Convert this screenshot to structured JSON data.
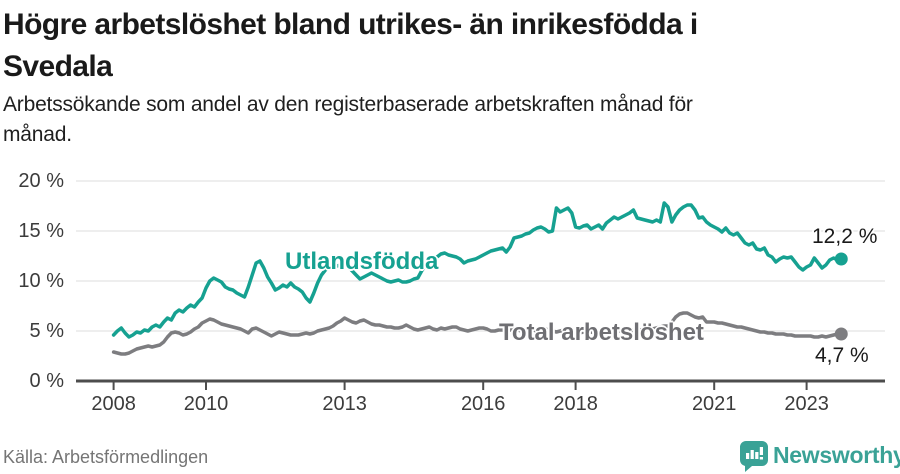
{
  "header": {
    "title_lines": [
      "Högre arbetslöshet bland utrikes- än inrikesfödda i",
      "Svedala"
    ],
    "subtitle_lines": [
      "Arbetssökande som andel av den registerbaserade arbetskraften månad för",
      "månad."
    ]
  },
  "chart_data": {
    "type": "line",
    "title": "Högre arbetslöshet bland utrikes- än inrikesfödda i Svedala",
    "subtitle": "Arbetssökande som andel av den registerbaserade arbetskraften månad för månad.",
    "frequency": "monthly",
    "x_start": "2008-01",
    "x_end": "2023-10",
    "ylim": [
      0,
      20
    ],
    "ytick_values": [
      0,
      5,
      10,
      15,
      20
    ],
    "yticks": [
      "0 %",
      "5 %",
      "10 %",
      "15 %",
      "20 %"
    ],
    "xticks": [
      2008,
      2010,
      2013,
      2016,
      2018,
      2021,
      2023
    ],
    "grid": true,
    "legend_position": "inline-labels",
    "series": [
      {
        "name": "Utlandsfödda",
        "color": "#16a191",
        "end_value": 12.2,
        "end_label": "12,2 %",
        "values": [
          4.6,
          5.0,
          5.3,
          4.8,
          4.4,
          4.6,
          4.9,
          4.8,
          5.1,
          5.0,
          5.4,
          5.6,
          5.4,
          5.9,
          6.3,
          6.1,
          6.8,
          7.1,
          6.9,
          7.3,
          7.6,
          7.4,
          7.9,
          8.3,
          9.3,
          10.0,
          10.3,
          10.1,
          9.9,
          9.4,
          9.2,
          9.1,
          8.8,
          8.6,
          8.4,
          9.4,
          10.6,
          11.8,
          12.0,
          11.3,
          10.4,
          9.8,
          9.1,
          9.3,
          9.6,
          9.4,
          9.8,
          9.4,
          9.2,
          8.9,
          8.3,
          7.9,
          8.8,
          9.8,
          10.6,
          11.1,
          11.3,
          11.4,
          11.5,
          11.6,
          11.6,
          11.4,
          11.0,
          10.6,
          10.2,
          10.4,
          10.6,
          10.8,
          10.6,
          10.4,
          10.2,
          10.0,
          9.9,
          10.0,
          10.1,
          9.9,
          9.9,
          10.0,
          10.2,
          10.3,
          11.0,
          11.6,
          12.0,
          12.3,
          12.4,
          12.7,
          12.8,
          12.6,
          12.5,
          12.4,
          12.2,
          11.8,
          12.0,
          12.1,
          12.2,
          12.4,
          12.6,
          12.8,
          13.0,
          13.1,
          13.2,
          13.3,
          12.9,
          13.4,
          14.3,
          14.4,
          14.5,
          14.7,
          14.8,
          15.1,
          15.3,
          15.4,
          15.2,
          14.9,
          15.0,
          17.3,
          16.9,
          17.1,
          17.3,
          16.8,
          15.4,
          15.3,
          15.5,
          15.6,
          15.2,
          15.4,
          15.6,
          15.2,
          15.8,
          16.1,
          16.4,
          16.2,
          16.4,
          16.6,
          16.8,
          17.1,
          16.3,
          16.2,
          16.1,
          16.0,
          15.9,
          16.1,
          15.9,
          17.8,
          17.4,
          15.9,
          16.6,
          17.1,
          17.4,
          17.6,
          17.6,
          17.1,
          16.3,
          16.4,
          15.9,
          15.6,
          15.4,
          15.2,
          14.9,
          15.3,
          14.8,
          14.6,
          14.8,
          14.3,
          13.8,
          13.6,
          13.8,
          13.2,
          13.1,
          13.3,
          12.6,
          12.4,
          11.9,
          12.2,
          12.4,
          12.3,
          12.4,
          11.9,
          11.4,
          11.1,
          11.4,
          11.6,
          12.3,
          11.8,
          11.3,
          11.6,
          12.1,
          12.3,
          12.1,
          12.2
        ]
      },
      {
        "name": "Total arbetslöshet",
        "color": "#7d7d80",
        "end_value": 4.7,
        "end_label": "4,7 %",
        "values": [
          2.9,
          2.8,
          2.7,
          2.7,
          2.8,
          3.0,
          3.2,
          3.3,
          3.4,
          3.5,
          3.4,
          3.5,
          3.6,
          3.9,
          4.4,
          4.8,
          4.9,
          4.8,
          4.6,
          4.7,
          4.9,
          5.2,
          5.4,
          5.8,
          6.0,
          6.2,
          6.1,
          5.9,
          5.7,
          5.6,
          5.5,
          5.4,
          5.3,
          5.2,
          5.0,
          4.8,
          5.2,
          5.3,
          5.1,
          4.9,
          4.7,
          4.5,
          4.7,
          4.9,
          4.8,
          4.7,
          4.6,
          4.6,
          4.6,
          4.7,
          4.8,
          4.7,
          4.8,
          5.0,
          5.1,
          5.2,
          5.3,
          5.5,
          5.8,
          6.0,
          6.3,
          6.1,
          5.9,
          5.8,
          6.0,
          6.1,
          5.9,
          5.7,
          5.6,
          5.6,
          5.5,
          5.4,
          5.4,
          5.3,
          5.3,
          5.4,
          5.6,
          5.4,
          5.2,
          5.1,
          5.2,
          5.3,
          5.4,
          5.2,
          5.1,
          5.3,
          5.2,
          5.3,
          5.4,
          5.4,
          5.2,
          5.1,
          5.0,
          5.1,
          5.2,
          5.3,
          5.3,
          5.2,
          5.0,
          5.0,
          5.1,
          5.1,
          5.0,
          5.1,
          5.2,
          5.1,
          5.0,
          5.1,
          5.2,
          5.1,
          5.0,
          5.1,
          5.2,
          5.1,
          5.0,
          4.9,
          5.0,
          5.1,
          5.0,
          4.9,
          4.9,
          4.8,
          4.9,
          5.0,
          4.9,
          4.8,
          4.9,
          5.0,
          5.1,
          5.0,
          4.9,
          5.0,
          5.0,
          5.1,
          5.0,
          5.1,
          5.2,
          5.1,
          5.2,
          5.3,
          5.2,
          5.3,
          5.4,
          5.5,
          5.5,
          5.9,
          6.4,
          6.7,
          6.8,
          6.8,
          6.6,
          6.4,
          6.3,
          6.4,
          5.9,
          5.9,
          5.9,
          5.8,
          5.8,
          5.7,
          5.6,
          5.5,
          5.4,
          5.4,
          5.3,
          5.2,
          5.1,
          5.0,
          4.9,
          4.9,
          4.8,
          4.8,
          4.7,
          4.7,
          4.7,
          4.6,
          4.6,
          4.5,
          4.5,
          4.5,
          4.5,
          4.5,
          4.4,
          4.4,
          4.5,
          4.4,
          4.5,
          4.6,
          4.7,
          4.7
        ]
      }
    ]
  },
  "footer": {
    "source": "Källa: Arbetsförmedlingen",
    "brand": "Newsworthy",
    "brand_icon": "bar-chart-bubble-icon"
  },
  "colors": {
    "foreign_born_line": "#16a191",
    "total_line": "#7d7d80",
    "brand_teal": "#3aa296",
    "axis": "#4d4d4d",
    "grid": "#e3e3e3",
    "text_dark": "#1a1a1a",
    "tick_text": "#3c3c3c",
    "source_text": "#757575"
  }
}
